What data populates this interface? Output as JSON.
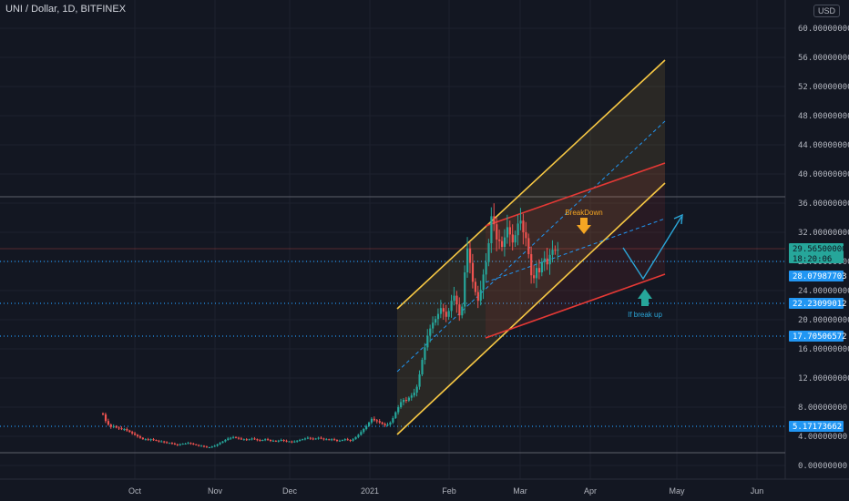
{
  "title": "UNI / Dollar, 1D, BITFINEX",
  "currency": "USD",
  "colors": {
    "background": "#131722",
    "grid": "#1e222d",
    "up": "#26a69a",
    "down": "#ef5350",
    "yellow_channel": "#f7c844",
    "red_channel": "#e53935",
    "median": "#2196f3",
    "arrow_blue": "#2ba6d8",
    "arrow_teal": "#26a69a",
    "current_price_badge": "#26a69a",
    "level_badge": "#2196f3"
  },
  "annotations": {
    "breakdown": "BreakDown",
    "if_break_up": "If break up"
  },
  "chart_data": {
    "type": "candlestick",
    "x_axis_labels": [
      "Oct",
      "Nov",
      "Dec",
      "2021",
      "Feb",
      "Mar",
      "Apr",
      "May",
      "Jun"
    ],
    "y_axis_labels": [
      "60.00000000",
      "56.00000000",
      "52.00000000",
      "48.00000000",
      "44.00000000",
      "40.00000000",
      "36.00000000",
      "32.00000000",
      "28.00000000",
      "24.00000000",
      "20.00000000",
      "16.00000000",
      "12.00000000",
      "8.00000000",
      "4.00000000",
      "0.00000000"
    ],
    "ylim": [
      0,
      60
    ],
    "current_price": "29.56500000",
    "countdown": "18:20:06",
    "price_levels": [
      "28.07987703",
      "22.23099012",
      "17.70506572",
      "5.17173662"
    ],
    "close_series": [
      7.0,
      6.1,
      5.6,
      5.3,
      5.4,
      5.2,
      5.1,
      5.0,
      5.0,
      4.8,
      4.6,
      4.4,
      4.2,
      4.0,
      3.8,
      3.6,
      3.6,
      3.5,
      3.6,
      3.5,
      3.4,
      3.3,
      3.3,
      3.2,
      3.1,
      3.1,
      3.0,
      2.9,
      2.8,
      2.9,
      3.0,
      3.0,
      3.1,
      3.0,
      2.9,
      2.8,
      2.7,
      2.7,
      2.6,
      2.5,
      2.5,
      2.6,
      2.7,
      2.9,
      3.1,
      3.3,
      3.5,
      3.7,
      3.8,
      3.9,
      3.8,
      3.7,
      3.6,
      3.6,
      3.5,
      3.6,
      3.7,
      3.6,
      3.5,
      3.4,
      3.5,
      3.6,
      3.5,
      3.4,
      3.4,
      3.3,
      3.4,
      3.5,
      3.4,
      3.3,
      3.3,
      3.2,
      3.3,
      3.4,
      3.5,
      3.6,
      3.7,
      3.8,
      3.7,
      3.6,
      3.7,
      3.8,
      3.7,
      3.6,
      3.6,
      3.5,
      3.6,
      3.5,
      3.4,
      3.4,
      3.5,
      3.6,
      3.5,
      3.4,
      3.6,
      3.9,
      4.2,
      4.6,
      5.0,
      5.4,
      5.9,
      6.4,
      6.2,
      6.1,
      5.9,
      5.7,
      5.5,
      5.6,
      5.9,
      6.5,
      7.3,
      8.0,
      8.7,
      9.0,
      8.9,
      9.3,
      9.6,
      10.0,
      10.8,
      12.5,
      14.5,
      16.2,
      17.8,
      18.8,
      19.6,
      20.1,
      20.8,
      21.6,
      21.1,
      20.4,
      21.2,
      22.6,
      23.3,
      22.1,
      20.6,
      21.8,
      26.5,
      29.8,
      27.8,
      25.2,
      23.8,
      22.6,
      24.1,
      26.2,
      27.9,
      30.5,
      34.2,
      33.1,
      31.0,
      30.8,
      30.0,
      31.3,
      32.7,
      31.7,
      30.6,
      31.6,
      33.2,
      33.6,
      32.0,
      31.2,
      29.0,
      26.1,
      25.7,
      27.1,
      26.5,
      27.9,
      28.4,
      27.6,
      28.9,
      29.6,
      29.5,
      29.6
    ],
    "study_lines": [
      {
        "name": "",
        "from": [
          15,
          5.0
        ],
        "to": [
          187,
          55.0
        ],
        "style": "yellow"
      },
      {
        "name": "",
        "from": [
          14,
          20.0
        ],
        "to": [
          187,
          38.5
        ],
        "style": "yellow"
      },
      {
        "name": "",
        "from": [
          115,
          33.5
        ],
        "to": [
          187,
          41.5
        ],
        "style": "red"
      },
      {
        "name": "",
        "from": [
          115,
          17.8
        ],
        "to": [
          187,
          25.8
        ],
        "style": "red"
      }
    ]
  }
}
